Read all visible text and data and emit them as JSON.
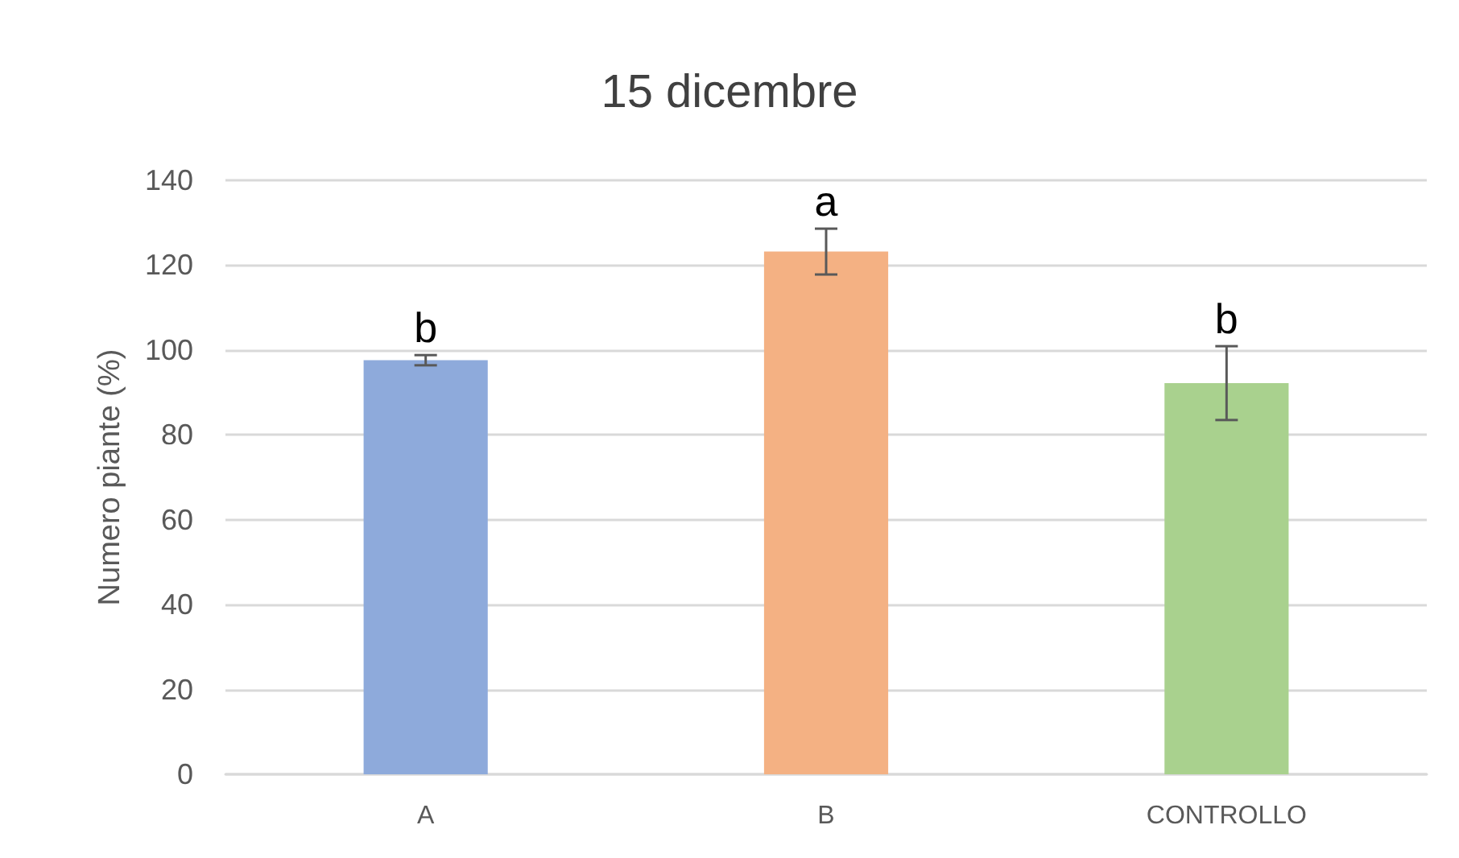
{
  "chart_data": {
    "type": "bar",
    "title": "15 dicembre",
    "ylabel": "Numero piante (%)",
    "categories": [
      "A",
      "B",
      "CONTROLLO"
    ],
    "values": [
      97.6,
      123.2,
      92.2
    ],
    "colors": [
      "#8eaadb",
      "#f4b183",
      "#a9d18e"
    ],
    "errors": [
      1.2,
      5.4,
      8.7
    ],
    "ylim": [
      0,
      140
    ],
    "yticks": [
      0,
      20,
      40,
      60,
      80,
      100,
      120,
      140
    ],
    "grid": "y",
    "annotations": [
      {
        "text": "b",
        "x": "A",
        "y": 98.8
      },
      {
        "text": "a",
        "x": "B",
        "y": 128.6
      },
      {
        "text": "b",
        "x": "CONTROLLO",
        "y": 100.9
      }
    ]
  }
}
